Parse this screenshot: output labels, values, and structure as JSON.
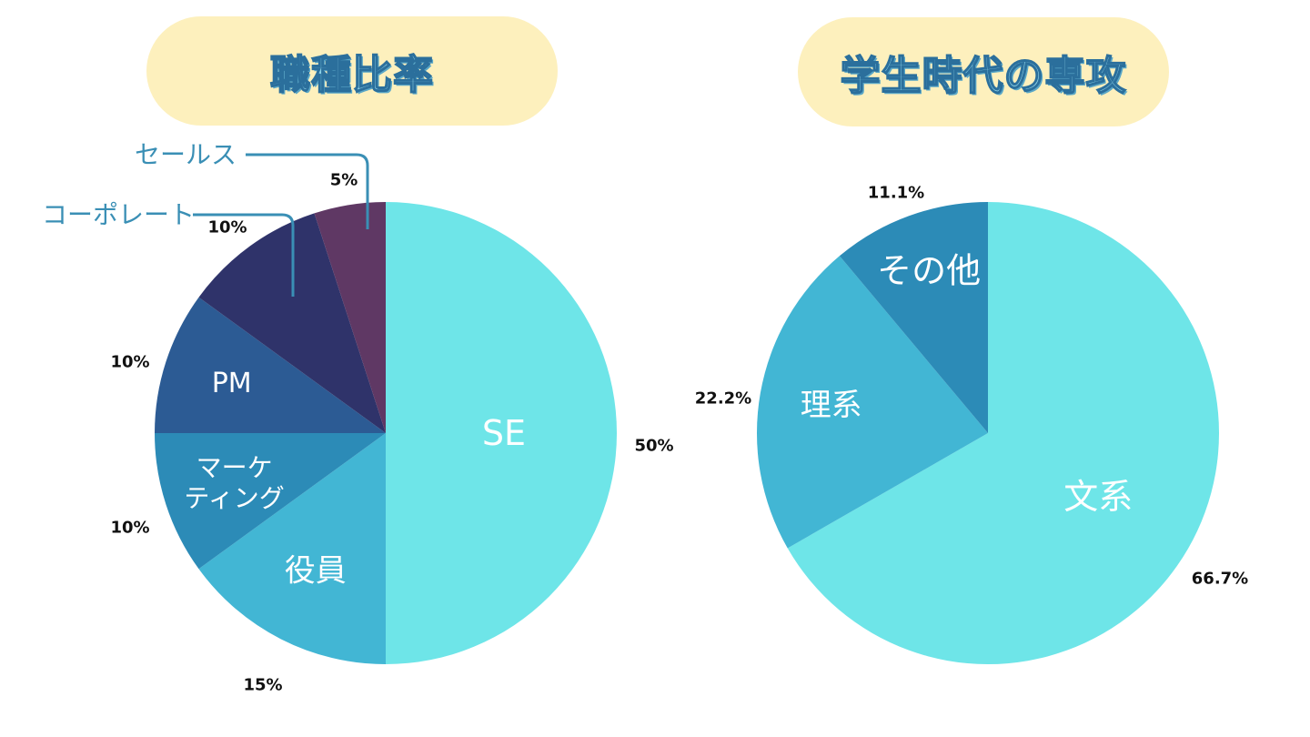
{
  "chart_data": [
    {
      "type": "pie",
      "title": "職種比率",
      "start_angle": "12 o'clock",
      "direction": "clockwise",
      "slices": [
        {
          "label": "SE",
          "value": 50,
          "value_label": "50%",
          "color": "#6ee5e8",
          "label_position": "inside"
        },
        {
          "label": "役員",
          "value": 15,
          "value_label": "15%",
          "color": "#42b6d4",
          "label_position": "inside"
        },
        {
          "label": "マーケ ティング",
          "label_lines": [
            "マーケ",
            "ティング"
          ],
          "value": 10,
          "value_label": "10%",
          "color": "#2c8bb7",
          "label_position": "inside"
        },
        {
          "label": "PM",
          "value": 10,
          "value_label": "10%",
          "color": "#2c5b94",
          "label_position": "inside"
        },
        {
          "label": "コーポレート",
          "value": 10,
          "value_label": "10%",
          "color": "#2f336a",
          "label_position": "outside-callout"
        },
        {
          "label": "セールス",
          "value": 5,
          "value_label": "5%",
          "color": "#5f3864",
          "label_position": "outside-callout"
        }
      ]
    },
    {
      "type": "pie",
      "title": "学生時代の専攻",
      "start_angle": "12 o'clock",
      "direction": "clockwise",
      "slices": [
        {
          "label": "文系",
          "value": 66.7,
          "value_label": "66.7%",
          "color": "#6ee5e8",
          "label_position": "inside"
        },
        {
          "label": "理系",
          "value": 22.2,
          "value_label": "22.2%",
          "color": "#42b6d4",
          "label_position": "inside"
        },
        {
          "label": "その他",
          "value": 11.1,
          "value_label": "11.1%",
          "color": "#2c8bb7",
          "label_position": "inside"
        }
      ]
    }
  ],
  "callout_color": "#3a8fb5"
}
